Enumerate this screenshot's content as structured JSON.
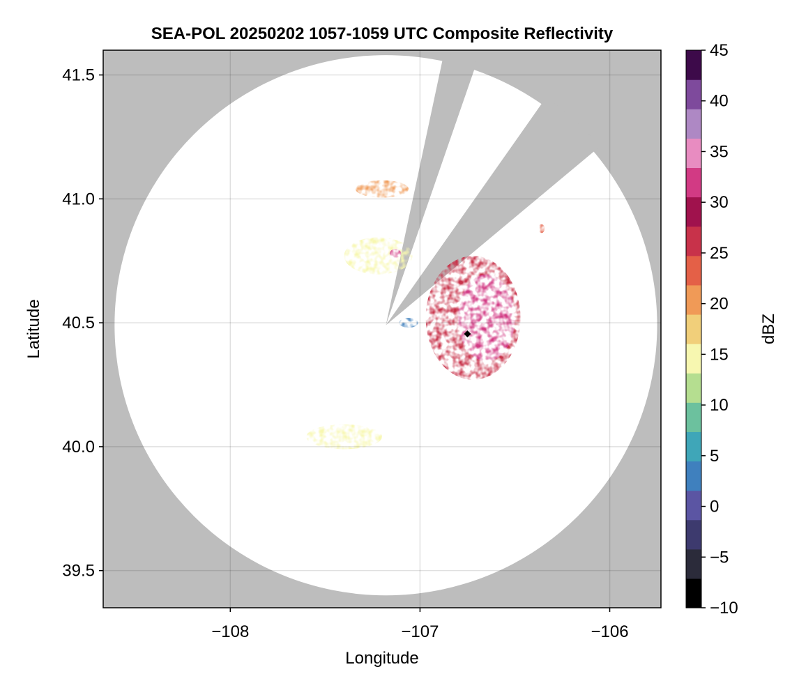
{
  "chart_data": {
    "type": "heatmap",
    "title": "SEA-POL 20250202 1057-1059 UTC Composite Reflectivity",
    "xlabel": "Longitude",
    "ylabel": "Latitude",
    "xlim": [
      -108.67,
      -105.73
    ],
    "ylim": [
      39.35,
      41.6
    ],
    "x_ticks": [
      -108,
      -107,
      -106
    ],
    "x_tick_labels": [
      "−108",
      "−107",
      "−106"
    ],
    "y_ticks": [
      39.5,
      40.0,
      40.5,
      41.0,
      41.5
    ],
    "y_tick_labels": [
      "39.5",
      "40.0",
      "40.5",
      "41.0",
      "41.5"
    ],
    "grid": true,
    "background_color": "#bdbdbd",
    "radar_site": {
      "lon": -107.18,
      "lat": 40.49
    },
    "coverage_radius_lon": 1.43,
    "coverage_radius_lat": 1.09,
    "blocked_sector_deg": [
      [
        12,
        19
      ],
      [
        35,
        50
      ]
    ],
    "marker": {
      "lon": -106.75,
      "lat": 40.455,
      "symbol": "diamond",
      "color": "#000000"
    },
    "colorbar": {
      "label": "dBZ",
      "min": -10,
      "max": 45,
      "ticks": [
        -10,
        -5,
        0,
        5,
        10,
        15,
        20,
        25,
        30,
        35,
        40,
        45
      ],
      "tick_labels": [
        "−10",
        "−5",
        "0",
        "5",
        "10",
        "15",
        "20",
        "25",
        "30",
        "35",
        "40",
        "45"
      ],
      "colors": [
        "#000000",
        "#2b2b3a",
        "#3d3a6e",
        "#5b55a3",
        "#3f80be",
        "#3fa6b8",
        "#6cc19e",
        "#b5de90",
        "#f7f7b0",
        "#f1cf7a",
        "#f09a57",
        "#e46047",
        "#c8324a",
        "#a0124d",
        "#d23a84",
        "#e88cc1",
        "#ae88c4",
        "#7e4a9c",
        "#3d0a4a"
      ]
    },
    "echo_regions": [
      {
        "name": "north-band",
        "center": [
          -107.2,
          41.04
        ],
        "size": [
          0.28,
          0.07
        ],
        "dbz": 20
      },
      {
        "name": "west-cluster",
        "center": [
          -107.22,
          40.77
        ],
        "size": [
          0.36,
          0.15
        ],
        "dbz": 14
      },
      {
        "name": "west-core",
        "center": [
          -107.13,
          40.78
        ],
        "size": [
          0.06,
          0.035
        ],
        "dbz": 32
      },
      {
        "name": "main-cell",
        "center": [
          -106.72,
          40.52
        ],
        "size": [
          0.5,
          0.5
        ],
        "dbz": 27
      },
      {
        "name": "main-cell-core",
        "center": [
          -106.65,
          40.52
        ],
        "size": [
          0.3,
          0.35
        ],
        "dbz": 31
      },
      {
        "name": "east-speck",
        "center": [
          -106.36,
          40.88
        ],
        "size": [
          0.035,
          0.035
        ],
        "dbz": 22
      },
      {
        "name": "southwest-band",
        "center": [
          -107.4,
          40.04
        ],
        "size": [
          0.4,
          0.1
        ],
        "dbz": 15
      },
      {
        "name": "near-site-weak",
        "center": [
          -107.06,
          40.5
        ],
        "size": [
          0.1,
          0.04
        ],
        "dbz": 2
      }
    ]
  }
}
